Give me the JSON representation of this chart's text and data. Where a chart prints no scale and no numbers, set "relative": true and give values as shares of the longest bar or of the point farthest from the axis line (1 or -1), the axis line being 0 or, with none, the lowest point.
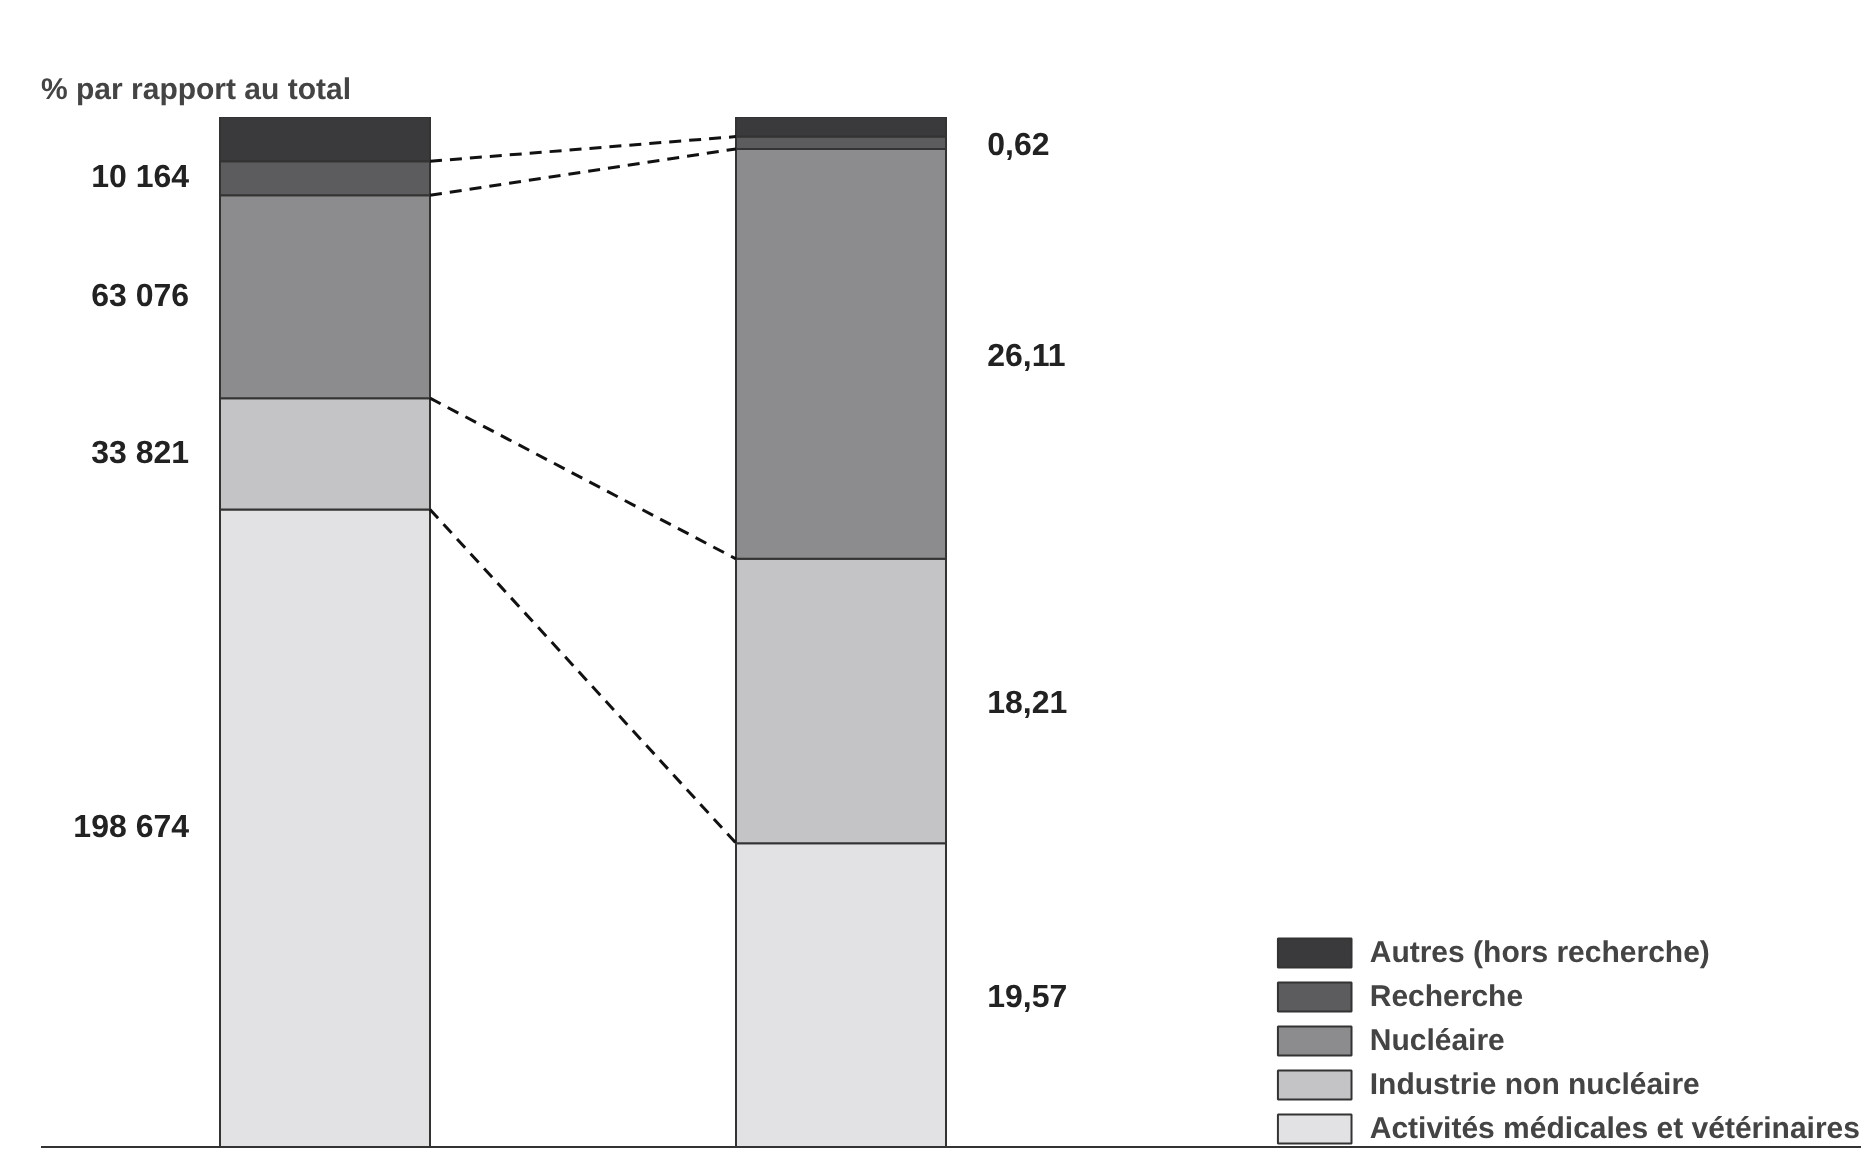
{
  "chart_data": {
    "type": "bar",
    "title": "% par rapport au total",
    "relative": true,
    "stacked": true,
    "categories": [
      null,
      null
    ],
    "legend": "bottom right",
    "grid": false,
    "series": [
      {
        "name": "Activités médicales et vétérinaires",
        "color": "#e2e2e4",
        "values": [
          0.619,
          0.295
        ]
      },
      {
        "name": "Industrie non nucléaire",
        "color": "#c4c4c6",
        "values": [
          0.108,
          0.276
        ]
      },
      {
        "name": "Nucléaire",
        "color": "#8c8c8e",
        "values": [
          0.197,
          0.398
        ]
      },
      {
        "name": "Recherche",
        "color": "#5c5c5e",
        "values": [
          0.033,
          0.012
        ]
      },
      {
        "name": "Autres (hors recherche)",
        "color": "#3a3a3c",
        "values": [
          0.043,
          0.019
        ]
      }
    ],
    "annotations": [
      "198 674",
      "33 821",
      "63 076",
      "10 164",
      "19,57",
      "18,21",
      "26,11",
      "0,62"
    ]
  }
}
